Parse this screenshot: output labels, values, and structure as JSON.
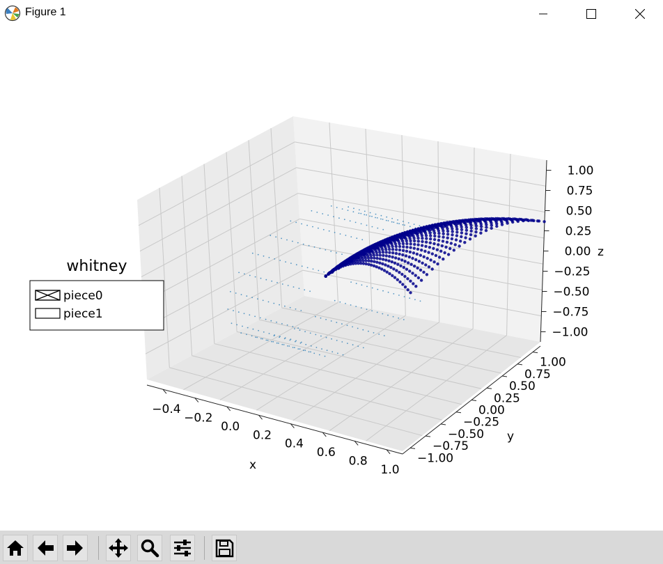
{
  "window": {
    "title": "Figure 1",
    "app_icon": "matplotlib-icon",
    "controls": [
      "minimize-icon",
      "maximize-icon",
      "close-icon"
    ]
  },
  "toolbar": {
    "buttons": [
      {
        "name": "home-button",
        "icon": "home-icon"
      },
      {
        "name": "back-button",
        "icon": "arrow-left-icon"
      },
      {
        "name": "forward-button",
        "icon": "arrow-right-icon"
      },
      {
        "name": "pan-button",
        "icon": "move-icon"
      },
      {
        "name": "zoom-button",
        "icon": "magnifier-icon"
      },
      {
        "name": "configure-subplots-button",
        "icon": "sliders-icon"
      },
      {
        "name": "save-button",
        "icon": "floppy-disk-icon"
      }
    ]
  },
  "chart_data": {
    "type": "scatter",
    "projection": "3d",
    "title": "",
    "xlabel": "x",
    "ylabel": "y",
    "zlabel": "z",
    "xticks": [
      "−0.4",
      "−0.2",
      "0.0",
      "0.2",
      "0.4",
      "0.6",
      "0.8",
      "1.0"
    ],
    "yticks": [
      "−1.00",
      "−0.75",
      "−0.50",
      "−0.25",
      "0.00",
      "0.25",
      "0.50",
      "0.75",
      "1.00"
    ],
    "zticks": [
      "−1.00",
      "−0.75",
      "−0.50",
      "−0.25",
      "0.00",
      "0.25",
      "0.50",
      "0.75",
      "1.00"
    ],
    "xlim": [
      -0.5,
      1.0
    ],
    "ylim": [
      -1.0,
      1.0
    ],
    "zlim": [
      -1.0,
      1.0
    ],
    "grid": true,
    "legend": {
      "title": "whitney",
      "placement": "left",
      "entries": [
        "piece0",
        "piece1"
      ]
    },
    "series": [
      {
        "name": "piece0",
        "color": "#00008b",
        "description_shape": "dense surface"
      },
      {
        "name": "piece1",
        "color": "#1f77b4",
        "description_shape": "sparse points"
      }
    ]
  }
}
